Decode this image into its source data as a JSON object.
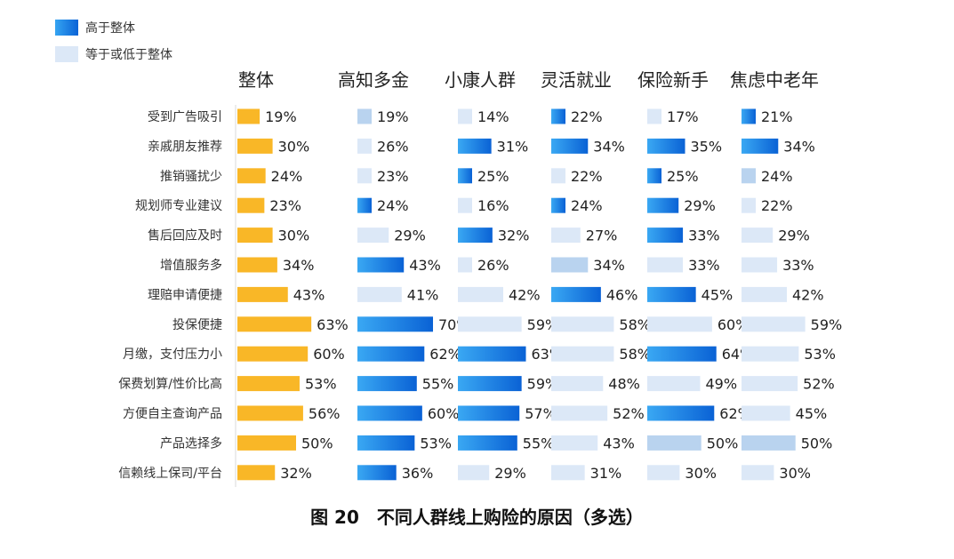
{
  "legend": {
    "above_label": "高于整体",
    "below_label": "等于或低于整体",
    "colors": {
      "overall": "#F9B727",
      "above_gradient": [
        "#35A4F2",
        "#0A63D6"
      ],
      "below": "#DCE8F7",
      "highlight_light_blue": "#B9D3EF"
    }
  },
  "caption": "图 20　不同人群线上购险的原因（多选）",
  "chart_data": {
    "type": "bar",
    "orientation": "horizontal",
    "value_unit": "%",
    "categories": [
      "受到广告吸引",
      "亲戚朋友推荐",
      "推销骚扰少",
      "规划师专业建议",
      "售后回应及时",
      "增值服务多",
      "理赔申请便捷",
      "投保便捷",
      "月缴，支付压力小",
      "保费划算/性价比高",
      "方便自主查询产品",
      "产品选择多",
      "信赖线上保司/平台"
    ],
    "series": [
      {
        "name": "整体",
        "values": [
          19,
          30,
          24,
          23,
          30,
          34,
          43,
          63,
          60,
          53,
          56,
          50,
          32
        ]
      },
      {
        "name": "高知多金",
        "values": [
          19,
          26,
          23,
          24,
          29,
          43,
          41,
          70,
          62,
          55,
          60,
          53,
          36
        ]
      },
      {
        "name": "小康人群",
        "values": [
          14,
          31,
          25,
          16,
          32,
          26,
          42,
          59,
          63,
          59,
          57,
          55,
          29
        ]
      },
      {
        "name": "灵活就业",
        "values": [
          22,
          34,
          22,
          24,
          27,
          34,
          46,
          58,
          58,
          48,
          52,
          43,
          31
        ]
      },
      {
        "name": "保险新手",
        "values": [
          17,
          35,
          25,
          29,
          33,
          33,
          45,
          60,
          64,
          49,
          62,
          50,
          30
        ]
      },
      {
        "name": "焦虑中老年",
        "values": [
          21,
          34,
          24,
          22,
          29,
          33,
          42,
          59,
          53,
          52,
          45,
          50,
          30
        ]
      }
    ]
  }
}
